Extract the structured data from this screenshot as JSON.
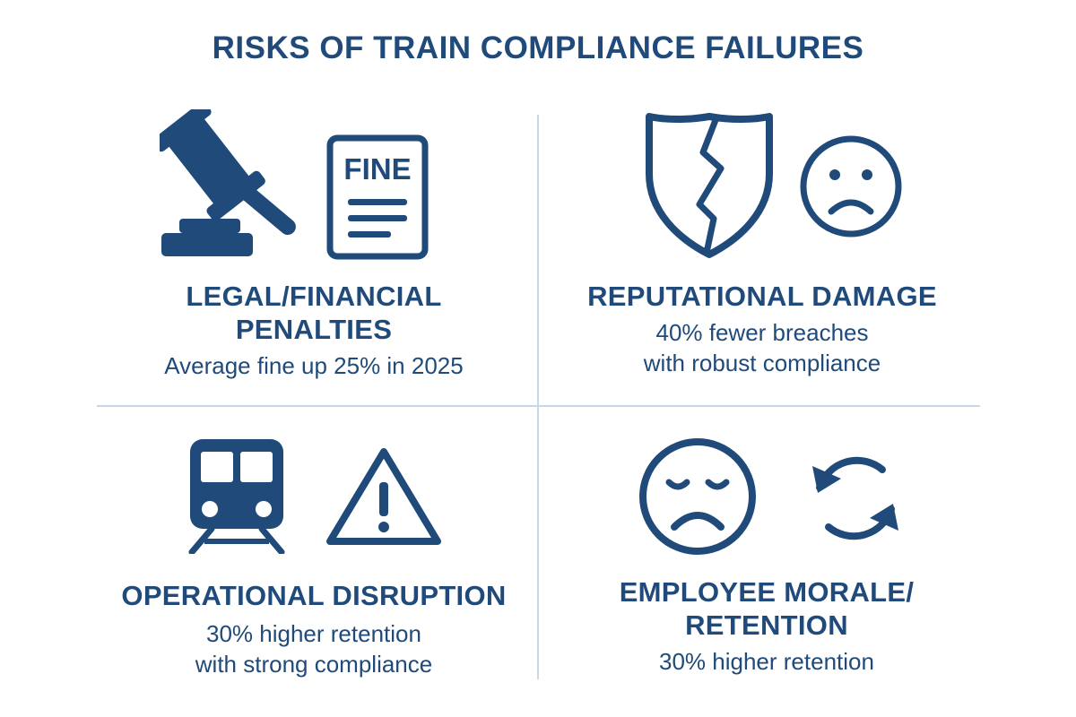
{
  "title": "RISKS OF TRAIN COMPLIANCE FAILURES",
  "colors": {
    "primary": "#1f4a7a",
    "divider": "#c9d6e6",
    "background": "#ffffff"
  },
  "quadrants": [
    {
      "heading": "LEGAL/FINANCIAL\nPENALTIES",
      "sub": "Average fine up 25% in 2025",
      "icons": [
        "gavel-icon",
        "fine-document-icon"
      ],
      "icon_text": "FINE"
    },
    {
      "heading": "REPUTATIONAL DAMAGE",
      "sub": "40% fewer breaches\nwith robust compliance",
      "icons": [
        "broken-shield-icon",
        "sad-face-icon"
      ]
    },
    {
      "heading": "OPERATIONAL DISRUPTION",
      "sub": "30% higher retention\nwith strong compliance",
      "icons": [
        "train-icon",
        "warning-triangle-icon"
      ]
    },
    {
      "heading": "EMPLOYEE MORALE/\nRETENTION",
      "sub": "30% higher retention",
      "icons": [
        "unhappy-face-icon",
        "refresh-cycle-icon"
      ]
    }
  ]
}
